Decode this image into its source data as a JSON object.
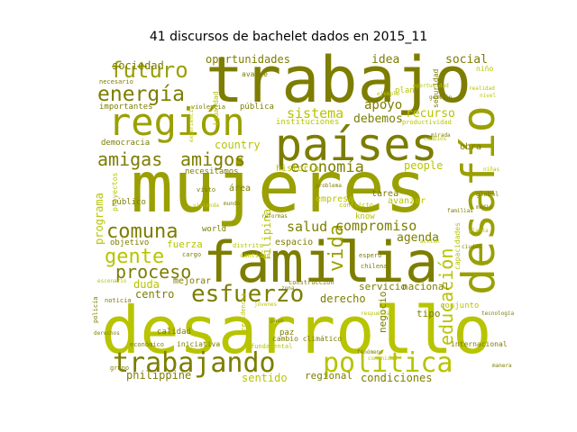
{
  "chart_data": {
    "type": "wordcloud",
    "title": "41 discursos de bachelet dados en 2015_11",
    "colors": {
      "dark": "#7d7d00",
      "mid": "#9aa000",
      "light": "#b8c400",
      "background": "#ffffff"
    },
    "words": [
      {
        "text": "mujeres",
        "weight": 100,
        "tone": "mid"
      },
      {
        "text": "desarrollo",
        "weight": 95,
        "tone": "light"
      },
      {
        "text": "trabajo",
        "weight": 92,
        "tone": "dark"
      },
      {
        "text": "familia",
        "weight": 85,
        "tone": "dark"
      },
      {
        "text": "países",
        "weight": 70,
        "tone": "dark"
      },
      {
        "text": "desafío",
        "weight": 65,
        "tone": "mid"
      },
      {
        "text": "región",
        "weight": 62,
        "tone": "mid"
      },
      {
        "text": "trabajando",
        "weight": 58,
        "tone": "dark"
      },
      {
        "text": "política",
        "weight": 56,
        "tone": "light"
      },
      {
        "text": "esfuerzo",
        "weight": 45,
        "tone": "dark"
      },
      {
        "text": "futuro",
        "weight": 40,
        "tone": "mid"
      },
      {
        "text": "energía",
        "weight": 40,
        "tone": "dark"
      },
      {
        "text": "amigas",
        "weight": 36,
        "tone": "dark"
      },
      {
        "text": "amigos",
        "weight": 36,
        "tone": "dark"
      },
      {
        "text": "comuna",
        "weight": 36,
        "tone": "dark"
      },
      {
        "text": "gente",
        "weight": 34,
        "tone": "light"
      },
      {
        "text": "proceso",
        "weight": 33,
        "tone": "dark"
      },
      {
        "text": "vida",
        "weight": 32,
        "tone": "mid"
      },
      {
        "text": "educación",
        "weight": 30,
        "tone": "light"
      },
      {
        "text": "economía",
        "weight": 28,
        "tone": "dark"
      },
      {
        "text": "sistema",
        "weight": 24,
        "tone": "light"
      },
      {
        "text": "compromiso",
        "weight": 24,
        "tone": "dark"
      },
      {
        "text": "salud",
        "weight": 22,
        "tone": "dark"
      },
      {
        "text": "apoyo",
        "weight": 21,
        "tone": "dark"
      },
      {
        "text": "debemos",
        "weight": 20,
        "tone": "dark"
      },
      {
        "text": "recurso",
        "weight": 20,
        "tone": "light"
      },
      {
        "text": "agenda",
        "weight": 20,
        "tone": "dark"
      },
      {
        "text": "idea",
        "weight": 20,
        "tone": "dark"
      },
      {
        "text": "social",
        "weight": 20,
        "tone": "dark"
      },
      {
        "text": "oportunidades",
        "weight": 19,
        "tone": "dark"
      },
      {
        "text": "sociedad",
        "weight": 18,
        "tone": "dark"
      },
      {
        "text": "country",
        "weight": 17,
        "tone": "light"
      },
      {
        "text": "people",
        "weight": 17,
        "tone": "light"
      },
      {
        "text": "centro",
        "weight": 18,
        "tone": "dark"
      },
      {
        "text": "derecho",
        "weight": 18,
        "tone": "dark"
      },
      {
        "text": "condiciones",
        "weight": 17,
        "tone": "dark"
      },
      {
        "text": "sentido",
        "weight": 16,
        "tone": "light"
      },
      {
        "text": "philippine",
        "weight": 16,
        "tone": "dark"
      },
      {
        "text": "duda",
        "weight": 16,
        "tone": "light"
      },
      {
        "text": "fuerza",
        "weight": 15,
        "tone": "light"
      },
      {
        "text": "programa",
        "weight": 16,
        "tone": "light"
      },
      {
        "text": "filipina",
        "weight": 16,
        "tone": "light"
      },
      {
        "text": "regional",
        "weight": 15,
        "tone": "dark"
      },
      {
        "text": "servicio",
        "weight": 14,
        "tone": "dark"
      },
      {
        "text": "nacional",
        "weight": 14,
        "tone": "dark"
      },
      {
        "text": "negocio",
        "weight": 14,
        "tone": "dark"
      },
      {
        "text": "tipo",
        "weight": 14,
        "tone": "dark"
      },
      {
        "text": "espacio",
        "weight": 13,
        "tone": "dark"
      },
      {
        "text": "mejorar",
        "weight": 13,
        "tone": "dark"
      },
      {
        "text": "área",
        "weight": 13,
        "tone": "dark"
      },
      {
        "text": "tarea",
        "weight": 13,
        "tone": "dark"
      },
      {
        "text": "avanzar",
        "weight": 12,
        "tone": "light"
      },
      {
        "text": "empresa",
        "weight": 12,
        "tone": "light"
      },
      {
        "text": "historia",
        "weight": 12,
        "tone": "light"
      },
      {
        "text": "objetivo",
        "weight": 11,
        "tone": "dark"
      },
      {
        "text": "público",
        "weight": 11,
        "tone": "dark"
      },
      {
        "text": "necesitamos",
        "weight": 11,
        "tone": "dark"
      },
      {
        "text": "instituciones",
        "weight": 11,
        "tone": "light"
      },
      {
        "text": "importantes",
        "weight": 11,
        "tone": "dark"
      },
      {
        "text": "democracia",
        "weight": 10,
        "tone": "dark"
      },
      {
        "text": "pública",
        "weight": 10,
        "tone": "dark"
      },
      {
        "text": "know",
        "weight": 10,
        "tone": "light"
      },
      {
        "text": "world",
        "weight": 10,
        "tone": "dark"
      },
      {
        "text": "calidad",
        "weight": 10,
        "tone": "dark"
      },
      {
        "text": "paz",
        "weight": 10,
        "tone": "dark"
      },
      {
        "text": "obra",
        "weight": 10,
        "tone": "dark"
      },
      {
        "text": "cambio climático",
        "weight": 9,
        "tone": "dark"
      },
      {
        "text": "internacional",
        "weight": 9,
        "tone": "dark"
      },
      {
        "text": "conjunto",
        "weight": 9,
        "tone": "light"
      },
      {
        "text": "capacidades",
        "weight": 9,
        "tone": "light"
      },
      {
        "text": "seguridad",
        "weight": 9,
        "tone": "dark"
      },
      {
        "text": "plan",
        "weight": 9,
        "tone": "light"
      },
      {
        "text": "avance",
        "weight": 9,
        "tone": "dark"
      },
      {
        "text": "proyectos",
        "weight": 9,
        "tone": "light"
      },
      {
        "text": "cargo",
        "weight": 8,
        "tone": "dark"
      },
      {
        "text": "distrito",
        "weight": 8,
        "tone": "light"
      },
      {
        "text": "cantidad",
        "weight": 8,
        "tone": "light"
      },
      {
        "text": "iniciativa",
        "weight": 8,
        "tone": "dark"
      },
      {
        "text": "económico",
        "weight": 8,
        "tone": "dark"
      },
      {
        "text": "global",
        "weight": 8,
        "tone": "dark"
      },
      {
        "text": "niño",
        "weight": 8,
        "tone": "light"
      },
      {
        "text": "necesario",
        "weight": 8,
        "tone": "dark"
      },
      {
        "text": "violencia",
        "weight": 8,
        "tone": "dark"
      },
      {
        "text": "igualdad",
        "weight": 8,
        "tone": "light"
      },
      {
        "text": "espero",
        "weight": 8,
        "tone": "dark"
      },
      {
        "text": "chilena",
        "weight": 8,
        "tone": "dark"
      },
      {
        "text": "grupo",
        "weight": 8,
        "tone": "dark"
      },
      {
        "text": "conflicto",
        "weight": 8,
        "tone": "light"
      },
      {
        "text": "productividad",
        "weight": 7,
        "tone": "light"
      },
      {
        "text": "construcción",
        "weight": 7,
        "tone": "dark"
      },
      {
        "text": "noticia",
        "weight": 7,
        "tone": "dark"
      },
      {
        "text": "policía",
        "weight": 7,
        "tone": "dark"
      },
      {
        "text": "visto",
        "weight": 7,
        "tone": "dark"
      },
      {
        "text": "escenario",
        "weight": 7,
        "tone": "light"
      },
      {
        "text": "fundamental",
        "weight": 7,
        "tone": "light"
      },
      {
        "text": "fenómeno",
        "weight": 7,
        "tone": "dark"
      },
      {
        "text": "presidencia",
        "weight": 7,
        "tone": "light"
      },
      {
        "text": "paso",
        "weight": 7,
        "tone": "dark"
      },
      {
        "text": "acción",
        "weight": 7,
        "tone": "light"
      },
      {
        "text": "oportunidad",
        "weight": 7,
        "tone": "light"
      },
      {
        "text": "gestión",
        "weight": 7,
        "tone": "dark"
      },
      {
        "text": "realidad",
        "weight": 7,
        "tone": "light"
      },
      {
        "text": "mundo",
        "weight": 7,
        "tone": "dark"
      },
      {
        "text": "experiencia",
        "weight": 7,
        "tone": "light"
      },
      {
        "text": "problema",
        "weight": 7,
        "tone": "dark"
      },
      {
        "text": "nivel",
        "weight": 7,
        "tone": "light"
      },
      {
        "text": "reformas",
        "weight": 7,
        "tone": "dark"
      },
      {
        "text": "planta",
        "weight": 6,
        "tone": "light"
      },
      {
        "text": "tecnología",
        "weight": 6,
        "tone": "dark"
      },
      {
        "text": "ejemplo",
        "weight": 6,
        "tone": "light"
      },
      {
        "text": "zona",
        "weight": 6,
        "tone": "dark"
      },
      {
        "text": "vivienda",
        "weight": 6,
        "tone": "light"
      },
      {
        "text": "mirada",
        "weight": 6,
        "tone": "dark"
      },
      {
        "text": "jóvenes",
        "weight": 6,
        "tone": "light"
      },
      {
        "text": "familias",
        "weight": 6,
        "tone": "dark"
      },
      {
        "text": "niñas",
        "weight": 6,
        "tone": "light"
      },
      {
        "text": "derechos",
        "weight": 6,
        "tone": "dark"
      },
      {
        "text": "comunidad",
        "weight": 6,
        "tone": "light"
      },
      {
        "text": "medio",
        "weight": 6,
        "tone": "dark"
      },
      {
        "text": "cambios",
        "weight": 6,
        "tone": "light"
      },
      {
        "text": "ciudad",
        "weight": 6,
        "tone": "dark"
      },
      {
        "text": "respuesta",
        "weight": 6,
        "tone": "light"
      },
      {
        "text": "manera",
        "weight": 6,
        "tone": "dark"
      }
    ]
  }
}
